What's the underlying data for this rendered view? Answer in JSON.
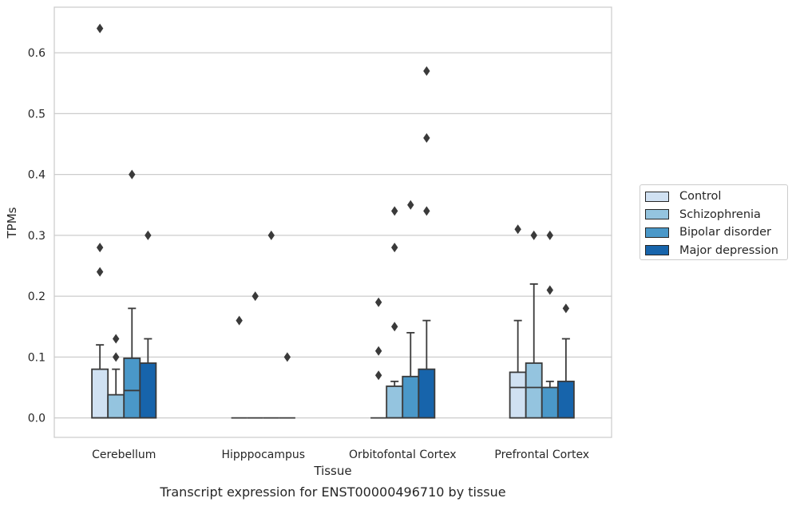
{
  "chart_data": {
    "type": "box",
    "title": "Transcript expression for ENST00000496710 by tissue",
    "xlabel": "Tissue",
    "ylabel": "TPMs",
    "ylim": [
      -0.032,
      0.675
    ],
    "yticks": [
      0.0,
      0.1,
      0.2,
      0.3,
      0.4,
      0.5,
      0.6
    ],
    "ytick_labels": [
      "0.0",
      "0.1",
      "0.2",
      "0.3",
      "0.4",
      "0.5",
      "0.6"
    ],
    "grid": "horizontal",
    "legend_position": "right",
    "categories": [
      "Cerebellum",
      "Hipppocampus",
      "Orbitofontal Cortex",
      "Prefrontal Cortex"
    ],
    "series": [
      {
        "name": "Control",
        "color": "#d0e1f2",
        "boxes": [
          {
            "q1": 0.0,
            "median": 0.0,
            "q3": 0.08,
            "whisker_low": 0.0,
            "whisker_high": 0.12,
            "outliers": [
              0.64,
              0.28,
              0.24
            ]
          },
          {
            "q1": 0.0,
            "median": 0.0,
            "q3": 0.0,
            "whisker_low": 0.0,
            "whisker_high": 0.0,
            "outliers": [
              0.16
            ]
          },
          {
            "q1": 0.0,
            "median": 0.0,
            "q3": 0.0,
            "whisker_low": 0.0,
            "whisker_high": 0.0,
            "outliers": [
              0.19,
              0.11,
              0.07
            ]
          },
          {
            "q1": 0.0,
            "median": 0.05,
            "q3": 0.075,
            "whisker_low": 0.0,
            "whisker_high": 0.16,
            "outliers": [
              0.31
            ]
          }
        ]
      },
      {
        "name": "Schizophrenia",
        "color": "#94c4df",
        "boxes": [
          {
            "q1": 0.0,
            "median": 0.0,
            "q3": 0.038,
            "whisker_low": 0.0,
            "whisker_high": 0.08,
            "outliers": [
              0.13,
              0.1
            ]
          },
          {
            "q1": 0.0,
            "median": 0.0,
            "q3": 0.0,
            "whisker_low": 0.0,
            "whisker_high": 0.0,
            "outliers": [
              0.2
            ]
          },
          {
            "q1": 0.0,
            "median": 0.0,
            "q3": 0.052,
            "whisker_low": 0.0,
            "whisker_high": 0.06,
            "outliers": [
              0.34,
              0.28,
              0.15
            ]
          },
          {
            "q1": 0.0,
            "median": 0.05,
            "q3": 0.09,
            "whisker_low": 0.0,
            "whisker_high": 0.22,
            "outliers": [
              0.3
            ]
          }
        ]
      },
      {
        "name": "Bipolar disorder",
        "color": "#4a98c9",
        "boxes": [
          {
            "q1": 0.0,
            "median": 0.045,
            "q3": 0.098,
            "whisker_low": 0.0,
            "whisker_high": 0.18,
            "outliers": [
              0.4
            ]
          },
          {
            "q1": 0.0,
            "median": 0.0,
            "q3": 0.0,
            "whisker_low": 0.0,
            "whisker_high": 0.0,
            "outliers": [
              0.3
            ]
          },
          {
            "q1": 0.0,
            "median": 0.0,
            "q3": 0.068,
            "whisker_low": 0.0,
            "whisker_high": 0.14,
            "outliers": [
              0.35
            ]
          },
          {
            "q1": 0.0,
            "median": 0.0,
            "q3": 0.05,
            "whisker_low": 0.0,
            "whisker_high": 0.06,
            "outliers": [
              0.3,
              0.21
            ]
          }
        ]
      },
      {
        "name": "Major depression",
        "color": "#1764ab",
        "boxes": [
          {
            "q1": 0.0,
            "median": 0.0,
            "q3": 0.09,
            "whisker_low": 0.0,
            "whisker_high": 0.13,
            "outliers": [
              0.3
            ]
          },
          {
            "q1": 0.0,
            "median": 0.0,
            "q3": 0.0,
            "whisker_low": 0.0,
            "whisker_high": 0.0,
            "outliers": [
              0.1
            ]
          },
          {
            "q1": 0.0,
            "median": 0.0,
            "q3": 0.08,
            "whisker_low": 0.0,
            "whisker_high": 0.16,
            "outliers": [
              0.57,
              0.46,
              0.34
            ]
          },
          {
            "q1": 0.0,
            "median": 0.0,
            "q3": 0.06,
            "whisker_low": 0.0,
            "whisker_high": 0.13,
            "outliers": [
              0.18
            ]
          }
        ]
      }
    ]
  }
}
